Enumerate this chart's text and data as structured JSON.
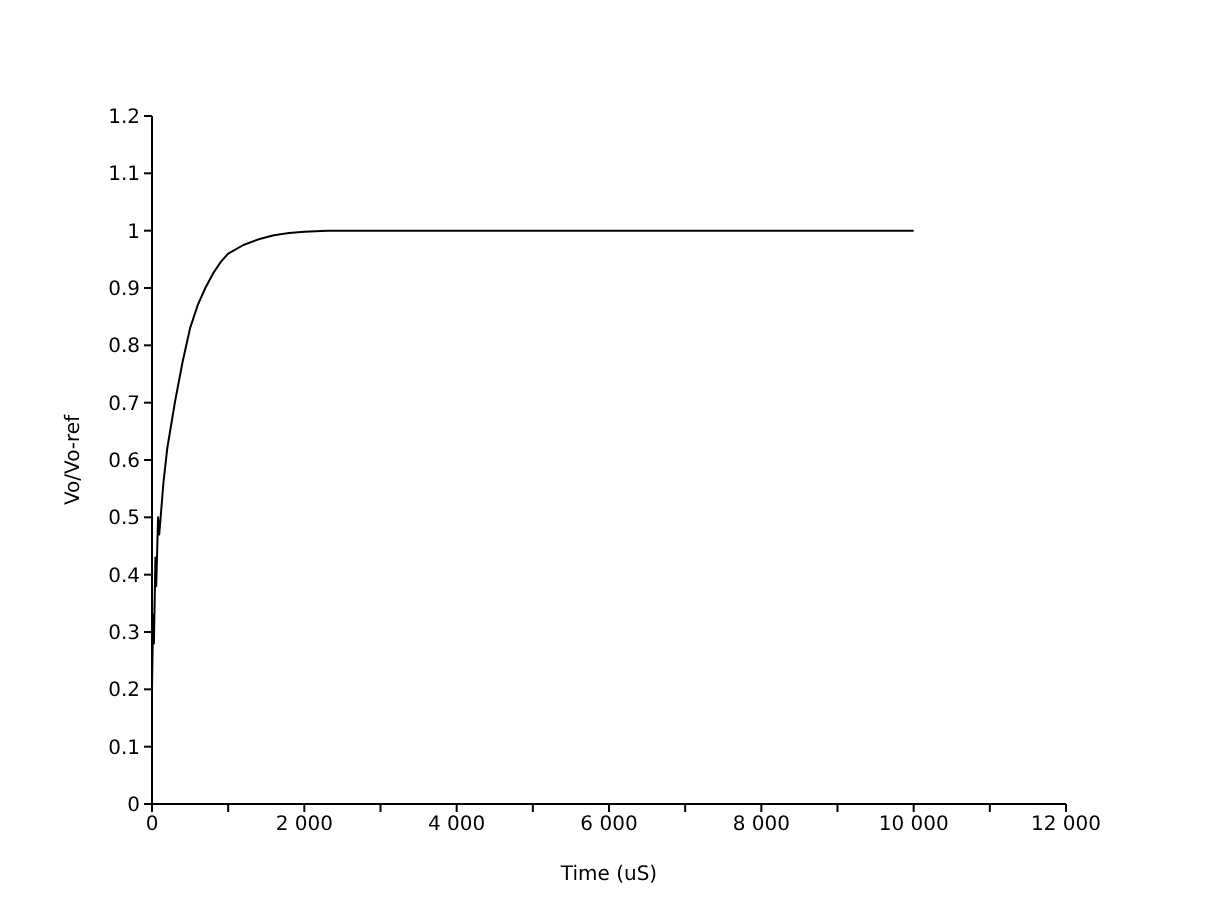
{
  "chart_data": {
    "type": "line",
    "xlabel": "Time (uS)",
    "ylabel": "Vo/Vo-ref",
    "x": [
      0,
      15,
      25,
      45,
      55,
      80,
      95,
      150,
      200,
      300,
      400,
      500,
      600,
      700,
      800,
      900,
      1000,
      1200,
      1400,
      1600,
      1800,
      2000,
      2300,
      4000,
      6000,
      8000,
      10000
    ],
    "series": [
      {
        "color": "#000000",
        "values": [
          0.2,
          0.33,
          0.28,
          0.43,
          0.38,
          0.5,
          0.47,
          0.56,
          0.62,
          0.7,
          0.77,
          0.83,
          0.87,
          0.9,
          0.925,
          0.945,
          0.96,
          0.975,
          0.985,
          0.992,
          0.996,
          0.998,
          1,
          1,
          1,
          1,
          1
        ]
      }
    ],
    "xlim": [
      0,
      12000
    ],
    "xticks": [
      0,
      {
        "value": 1000,
        "label": null
      },
      {
        "value": 2000,
        "label": "2 000"
      },
      {
        "value": 3000,
        "label": null
      },
      {
        "value": 4000,
        "label": "4 000"
      },
      {
        "value": 5000,
        "label": null
      },
      {
        "value": 6000,
        "label": "6 000"
      },
      {
        "value": 7000,
        "label": null
      },
      {
        "value": 8000,
        "label": "8 000"
      },
      {
        "value": 9000,
        "label": null
      },
      {
        "value": 10000,
        "label": "10 000"
      },
      {
        "value": 11000,
        "label": null
      },
      {
        "value": 12000,
        "label": "12 000"
      }
    ],
    "ylim": [
      0,
      1.2
    ],
    "yticks": [
      0,
      0.1,
      0.2,
      0.3,
      0.4,
      0.5,
      0.6,
      0.7,
      0.8,
      0.9,
      1,
      1.1,
      1.2
    ],
    "grid": false,
    "legend": false,
    "marker": "none",
    "line_style": "solid"
  }
}
